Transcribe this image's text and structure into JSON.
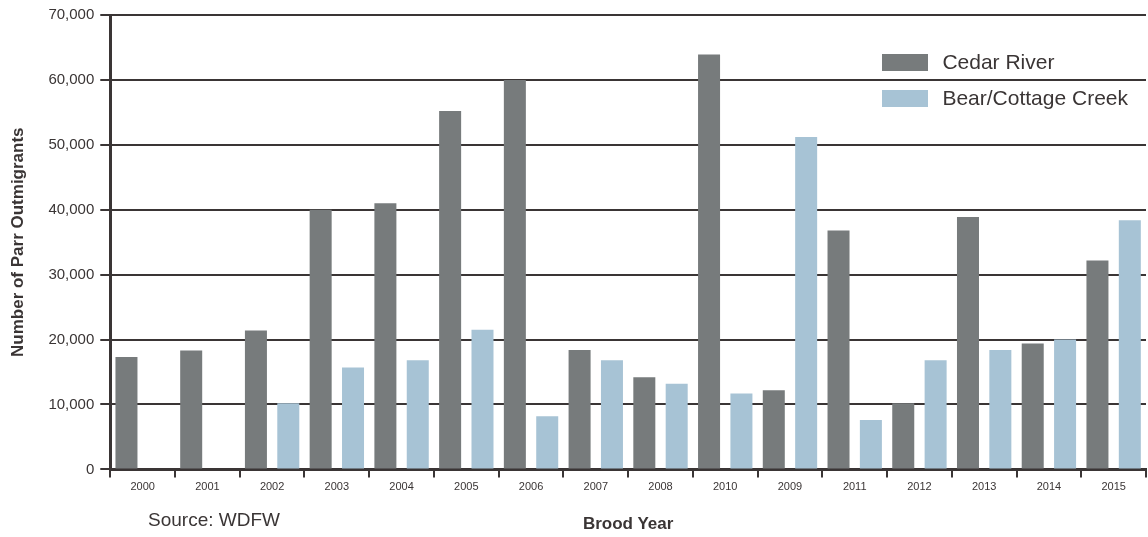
{
  "chart_data": {
    "type": "bar",
    "xlabel": "Brood Year",
    "ylabel": "Number of Parr Outmigrants",
    "categories": [
      "2000",
      "2001",
      "2002",
      "2003",
      "2004",
      "2005",
      "2006",
      "2007",
      "2008",
      "2010",
      "2009",
      "2011",
      "2012",
      "2013",
      "2014",
      "2015"
    ],
    "series": [
      {
        "name": "Cedar River",
        "color": "#777b7c",
        "values": [
          17300,
          18300,
          21400,
          40000,
          41000,
          55200,
          60000,
          18400,
          14200,
          63900,
          12200,
          36800,
          10200,
          38900,
          19400,
          32200
        ]
      },
      {
        "name": "Bear/Cottage Creek",
        "color": "#a7c3d5",
        "values": [
          null,
          null,
          10200,
          15700,
          16800,
          21500,
          8200,
          16800,
          13200,
          11700,
          51200,
          7600,
          16800,
          18400,
          20000,
          38400
        ]
      }
    ],
    "ylim": [
      0,
      70000
    ],
    "yticks": [
      0,
      {
        "value": 10000,
        "label": "10,000"
      },
      {
        "value": 20000,
        "label": "20,000"
      },
      {
        "value": 30000,
        "label": "30,000"
      },
      {
        "value": 40000,
        "label": "40,000"
      },
      {
        "value": 50000,
        "label": "50,000"
      },
      {
        "value": 60000,
        "label": "60,000"
      },
      {
        "value": 70000,
        "label": "70,000"
      }
    ],
    "grid": "y",
    "legend": "top right",
    "annotations": [
      "Source: WDFW"
    ]
  }
}
